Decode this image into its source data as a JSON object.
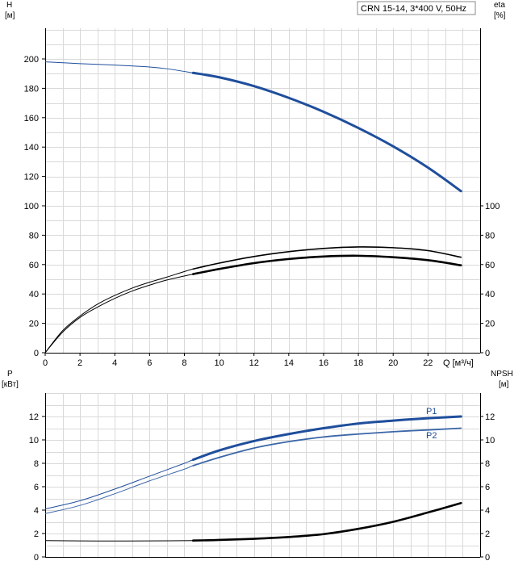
{
  "chart_data": [
    {
      "type": "line",
      "id": "head_eta",
      "title": "CRN 15-14, 3*400 V, 50Hz",
      "y_left_label": [
        "H",
        "[м]"
      ],
      "y_right_label": [
        "eta",
        "[%]"
      ],
      "x_label": "Q [м³/ч]",
      "xlim": [
        0,
        25
      ],
      "x_ticks": [
        0,
        2,
        4,
        6,
        8,
        10,
        12,
        14,
        16,
        18,
        20,
        22
      ],
      "ylim": [
        0,
        220
      ],
      "y_left_ticks": [
        0,
        20,
        40,
        60,
        80,
        100,
        120,
        140,
        160,
        180,
        200
      ],
      "y_right_ticks": [
        0,
        20,
        40,
        60,
        80,
        100
      ],
      "grid": true,
      "series": [
        {
          "key": "H",
          "color": "#1f4e9c",
          "x": [
            0,
            2,
            4,
            6,
            7,
            8.5,
            10,
            12,
            14,
            16,
            18,
            20,
            22,
            23.9
          ],
          "y": [
            198,
            196.8,
            195.8,
            194.5,
            193.3,
            190.5,
            187.5,
            181.5,
            173.5,
            164,
            153,
            140.5,
            126,
            110
          ]
        },
        {
          "key": "eta_upper",
          "color": "#000000",
          "x": [
            0,
            1,
            2,
            3,
            4,
            5,
            6,
            7,
            8.5,
            10,
            12,
            14,
            16,
            18,
            20,
            22,
            23.9
          ],
          "y": [
            0,
            15,
            25,
            33,
            39,
            44,
            48,
            51.5,
            57,
            61,
            65.5,
            68.8,
            71,
            72,
            71.5,
            69.5,
            65
          ]
        },
        {
          "key": "eta_lower",
          "color": "#000000",
          "x": [
            0,
            1,
            2,
            3,
            4,
            5,
            6,
            7,
            8.5,
            10,
            12,
            14,
            16,
            18,
            20,
            22,
            23.9
          ],
          "y": [
            0,
            14,
            24,
            31,
            37,
            42,
            46,
            49.5,
            53.5,
            57,
            61,
            63.8,
            65.5,
            66,
            65,
            63,
            59.5
          ]
        }
      ]
    },
    {
      "type": "line",
      "id": "power_npsh",
      "y_left_label": [
        "P",
        "[кВт]"
      ],
      "y_right_label": [
        "NPSH",
        "[м]"
      ],
      "xlim": [
        0,
        25
      ],
      "x_ticks": [
        0,
        2,
        4,
        6,
        8,
        10,
        12,
        14,
        16,
        18,
        20,
        22
      ],
      "ylim": [
        0,
        14
      ],
      "y_left_ticks": [
        0,
        2,
        4,
        6,
        8,
        10,
        12
      ],
      "y_right_ticks": [
        0,
        2,
        4,
        6,
        8,
        10,
        12
      ],
      "grid": true,
      "series": [
        {
          "key": "P1",
          "name": "P1",
          "color": "#1f4e9c",
          "x": [
            0,
            2,
            4,
            6,
            8,
            8.5,
            10,
            12,
            14,
            16,
            18,
            20,
            22,
            23.9
          ],
          "y": [
            4.1,
            4.8,
            5.8,
            6.9,
            8.0,
            8.3,
            9.1,
            9.9,
            10.5,
            11.0,
            11.4,
            11.65,
            11.85,
            12.0
          ]
        },
        {
          "key": "P2",
          "name": "P2",
          "color": "#3b66a8",
          "x": [
            0,
            2,
            4,
            6,
            8,
            8.5,
            10,
            12,
            14,
            16,
            18,
            20,
            22,
            23.9
          ],
          "y": [
            3.7,
            4.4,
            5.4,
            6.5,
            7.5,
            7.8,
            8.5,
            9.3,
            9.85,
            10.25,
            10.5,
            10.7,
            10.85,
            11.0
          ]
        },
        {
          "key": "NPSH",
          "color": "#000000",
          "x": [
            0,
            2,
            4,
            6,
            8.5,
            10,
            12,
            14,
            16,
            18,
            20,
            22,
            23.9
          ],
          "y": [
            1.4,
            1.37,
            1.36,
            1.37,
            1.4,
            1.45,
            1.55,
            1.7,
            1.95,
            2.4,
            3.0,
            3.8,
            4.6
          ]
        }
      ]
    }
  ]
}
